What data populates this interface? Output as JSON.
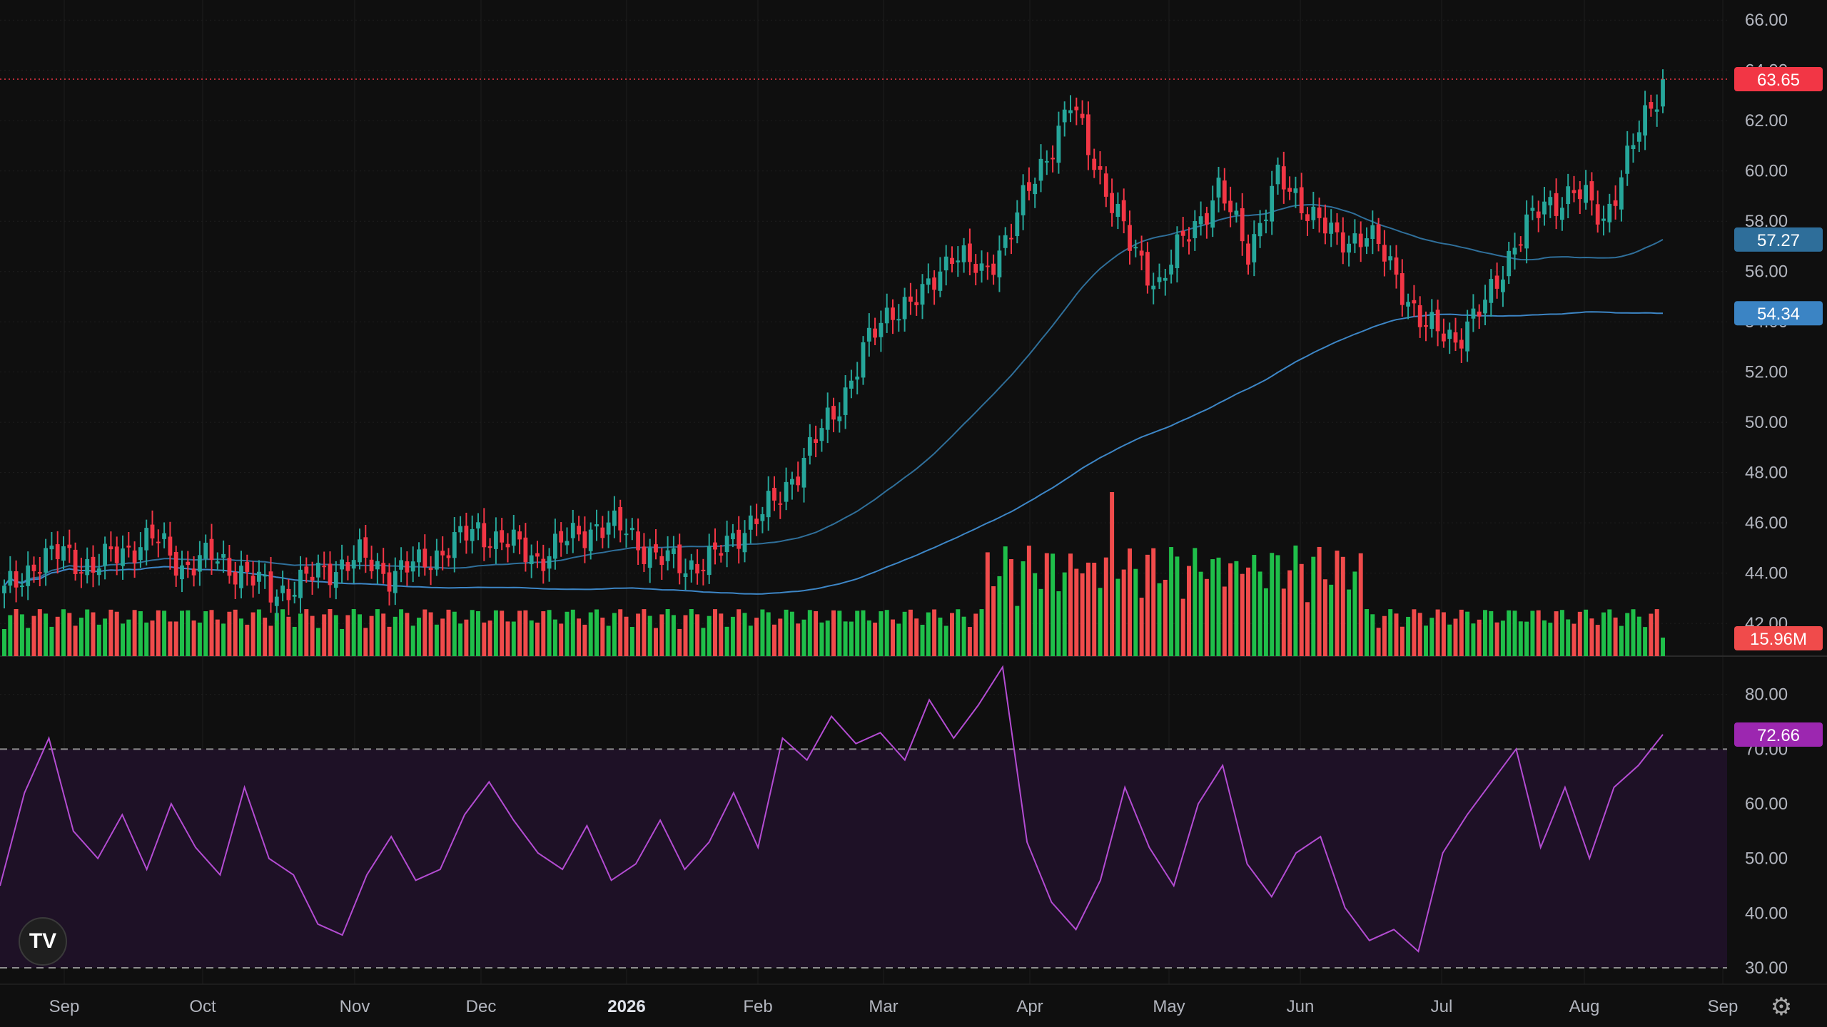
{
  "chart_data": {
    "type": "candlestick",
    "price_axis": {
      "range": [
        40.7,
        66.8
      ],
      "ticks": [
        "66.00",
        "64.00",
        "62.00",
        "60.00",
        "58.00",
        "56.00",
        "54.00",
        "52.00",
        "50.00",
        "48.00",
        "46.00",
        "44.00",
        "42.00"
      ]
    },
    "time_axis": {
      "labels": [
        {
          "text": "Sep",
          "bold": false
        },
        {
          "text": "Oct",
          "bold": false
        },
        {
          "text": "Nov",
          "bold": false
        },
        {
          "text": "Dec",
          "bold": false
        },
        {
          "text": "2026",
          "bold": true
        },
        {
          "text": "Feb",
          "bold": false
        },
        {
          "text": "Mar",
          "bold": false
        },
        {
          "text": "Apr",
          "bold": false
        },
        {
          "text": "May",
          "bold": false
        },
        {
          "text": "Jun",
          "bold": false
        },
        {
          "text": "Jul",
          "bold": false
        },
        {
          "text": "Aug",
          "bold": false
        },
        {
          "text": "Sep",
          "bold": false
        }
      ]
    },
    "closes_by_week": [
      43.2,
      44.4,
      44.8,
      44.2,
      44.9,
      45.4,
      44.3,
      44.6,
      44.1,
      43.2,
      43.6,
      44.2,
      44.6,
      44.0,
      44.3,
      45.1,
      45.7,
      45.2,
      44.6,
      45.3,
      45.9,
      45.7,
      44.6,
      44.3,
      44.6,
      45.9,
      46.7,
      48.6,
      50.3,
      52.8,
      54.6,
      54.9,
      56.9,
      55.8,
      57.7,
      60.2,
      62.6,
      59.9,
      57.0,
      55.5,
      57.6,
      59.2,
      56.9,
      59.6,
      58.6,
      57.1,
      57.6,
      55.8,
      53.7,
      53.4,
      54.6,
      57.2,
      58.6,
      59.2,
      58.1,
      61.0,
      63.65
    ],
    "moving_averages": [
      {
        "last_value": "57.27",
        "color": "#2f6f9a",
        "label_bg": "#2e6e9a"
      },
      {
        "last_value": "54.34",
        "color": "#3d86c6",
        "label_bg": "#3b84c4"
      }
    ],
    "last_price": {
      "value": "63.65",
      "color": "#f23645"
    },
    "volume": {
      "last_value": "15.96M",
      "up_color": "#1fbf4a",
      "down_color": "#f04b4b"
    },
    "rsi": {
      "range": [
        27,
        87
      ],
      "ticks": [
        "80.00",
        "70.00",
        "60.00",
        "50.00",
        "40.00",
        "30.00"
      ],
      "levels": [
        70,
        30
      ],
      "last_value": "72.66",
      "color": "#b44cd3",
      "values": [
        45,
        62,
        72,
        55,
        50,
        58,
        48,
        60,
        52,
        47,
        63,
        50,
        47,
        38,
        36,
        47,
        54,
        46,
        48,
        58,
        64,
        57,
        51,
        48,
        56,
        46,
        49,
        57,
        48,
        53,
        62,
        52,
        72,
        68,
        76,
        71,
        73,
        68,
        79,
        72,
        78,
        85,
        53,
        42,
        37,
        46,
        63,
        52,
        45,
        60,
        67,
        49,
        43,
        51,
        54,
        41,
        35,
        37,
        33,
        51,
        58,
        64,
        70,
        52,
        63,
        50,
        63,
        67,
        72.66
      ]
    },
    "colors": {
      "up": "#26a69a",
      "down": "#f23645",
      "background": "#0f0f0f",
      "rsi_fill": "#1e1126"
    }
  },
  "branding": {
    "logo_text": "TV",
    "logo_icon": "tradingview-logo-icon",
    "settings_icon": "gear-icon"
  }
}
